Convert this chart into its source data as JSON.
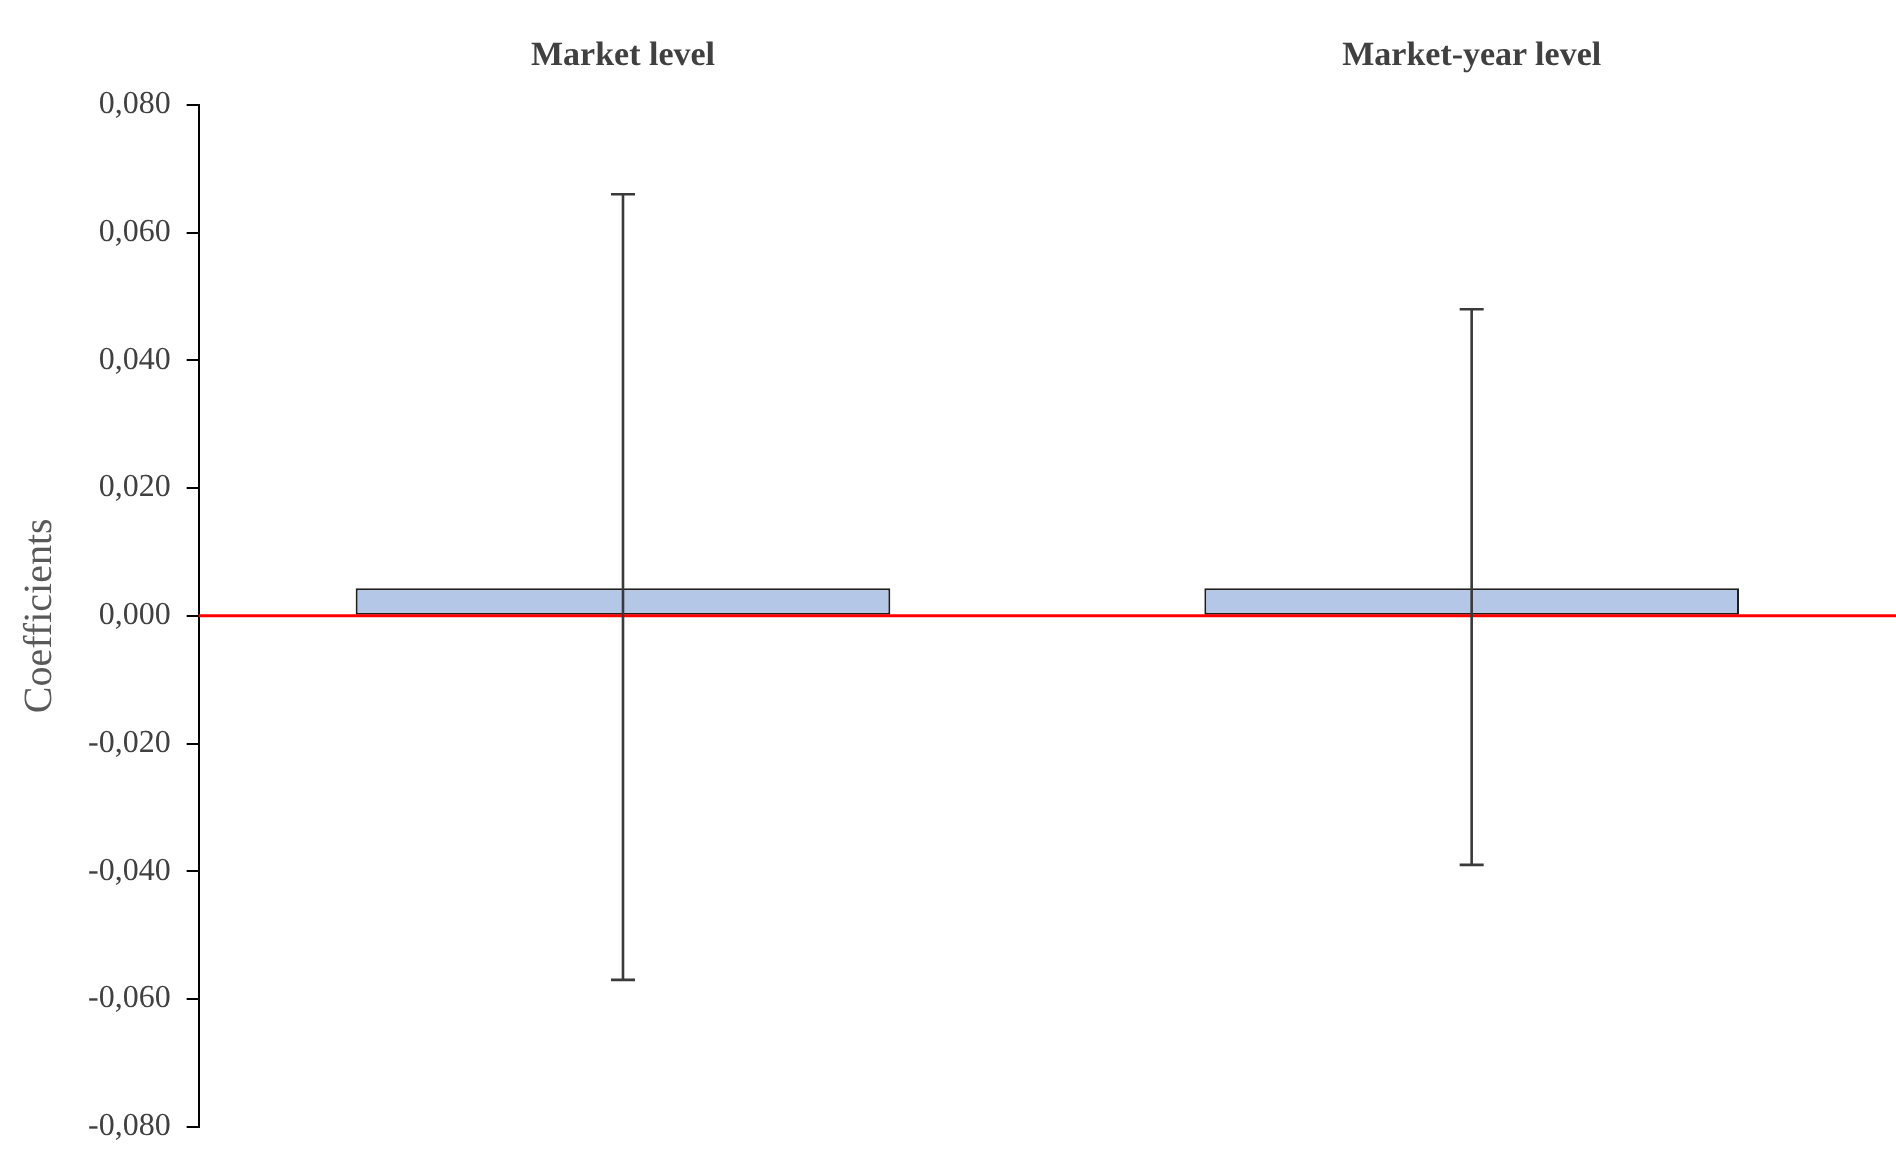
{
  "chart_data": {
    "type": "bar",
    "ylabel": "Coefficients",
    "categories": [
      "Market level",
      "Market-year level"
    ],
    "series": [
      {
        "color": "#b4c7e7",
        "values": [
          0.0043,
          0.0043
        ],
        "errors": [
          [
            -0.057,
            0.066
          ],
          [
            -0.039,
            0.048
          ]
        ]
      }
    ],
    "ylim": [
      -0.08,
      0.08
    ],
    "yticks": [
      {
        "value": -0.08,
        "label": "-0,080"
      },
      {
        "value": -0.06,
        "label": "-0,060"
      },
      {
        "value": -0.04,
        "label": "-0,040"
      },
      {
        "value": -0.02,
        "label": "-0,020"
      },
      {
        "value": 0,
        "label": "0,000"
      },
      {
        "value": 0.02,
        "label": "0,020"
      },
      {
        "value": 0.04,
        "label": "0,040"
      },
      {
        "value": 0.06,
        "label": "0,060"
      },
      {
        "value": 0.08,
        "label": "0,080"
      }
    ],
    "ref_lines": [
      {
        "axis": "y",
        "value": 0,
        "color": "#ff0000"
      }
    ],
    "grid": false,
    "legend": false
  }
}
